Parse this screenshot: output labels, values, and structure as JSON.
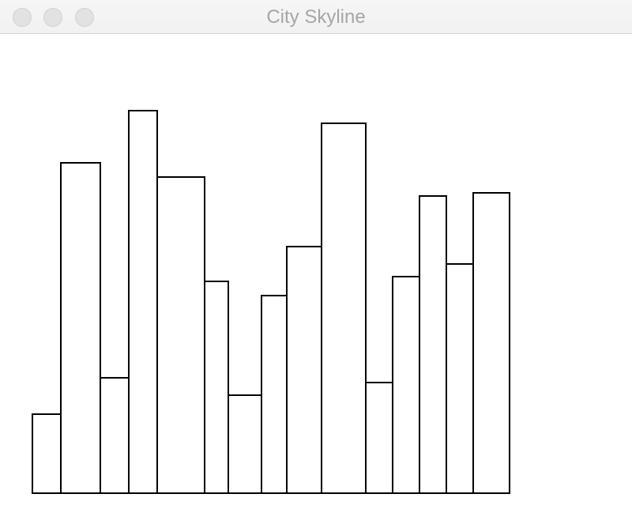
{
  "window": {
    "title": "City Skyline"
  },
  "buttons": {
    "close": "close-window",
    "minimize": "minimize-window",
    "zoom": "zoom-window"
  },
  "skyline": {
    "ground_level": 0,
    "buildings": [
      {
        "width": 36,
        "height": 100
      },
      {
        "width": 50,
        "height": 418
      },
      {
        "width": 36,
        "height": 146
      },
      {
        "width": 36,
        "height": 484
      },
      {
        "width": 60,
        "height": 400
      },
      {
        "width": 30,
        "height": 268
      },
      {
        "width": 42,
        "height": 124
      },
      {
        "width": 32,
        "height": 250
      },
      {
        "width": 44,
        "height": 312
      },
      {
        "width": 56,
        "height": 468
      },
      {
        "width": 34,
        "height": 140
      },
      {
        "width": 34,
        "height": 274
      },
      {
        "width": 34,
        "height": 376
      },
      {
        "width": 34,
        "height": 290
      },
      {
        "width": 46,
        "height": 380
      }
    ],
    "stroke_color": "#000000",
    "fill_color": "#ffffff"
  }
}
